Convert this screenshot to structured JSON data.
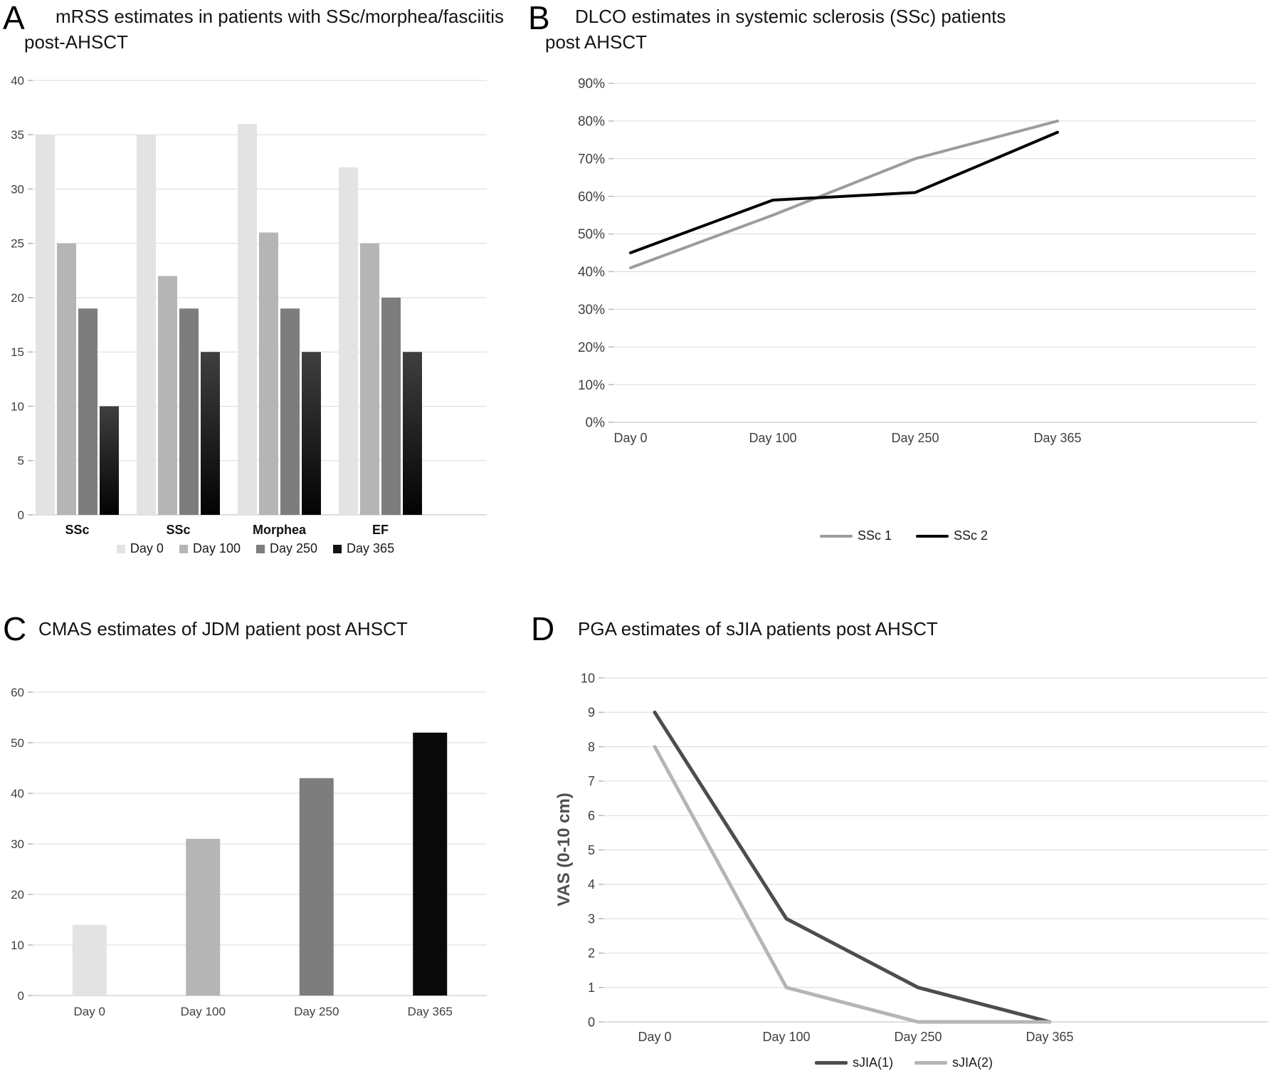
{
  "figure": {
    "background": "#ffffff"
  },
  "panels": [
    {
      "letter": "A",
      "title_lines": [
        "mRSS estimates in patients with SSc/morphea/fasciitis",
        "post-AHSCT"
      ]
    },
    {
      "letter": "B",
      "title_lines": [
        "DLCO estimates in systemic sclerosis (SSc) patients",
        "post AHSCT"
      ]
    },
    {
      "letter": "C",
      "title_lines": [
        "CMAS estimates of JDM patient post AHSCT"
      ]
    },
    {
      "letter": "D",
      "title_lines": [
        "PGA estimates of sJIA patients post AHSCT"
      ]
    }
  ],
  "chart_data": [
    {
      "panel": "A",
      "type": "bar",
      "title": "mRSS estimates in patients with SSc/morphea/fasciitis post-AHSCT",
      "categories": [
        "SSc",
        "SSc",
        "Morphea",
        "EF"
      ],
      "series": [
        {
          "name": "Day 0",
          "color": "#e3e3e3",
          "values": [
            35,
            35,
            36,
            32
          ]
        },
        {
          "name": "Day 100",
          "color": "#b5b5b5",
          "values": [
            25,
            22,
            26,
            25
          ]
        },
        {
          "name": "Day 250",
          "color": "#7d7d7d",
          "values": [
            19,
            19,
            19,
            20
          ]
        },
        {
          "name": "Day 365",
          "color": "#141414",
          "values": [
            10,
            15,
            15,
            15
          ]
        }
      ],
      "ylim": [
        0,
        40
      ],
      "ytick_step": 5,
      "grid": true,
      "legend_position": "bottom"
    },
    {
      "panel": "B",
      "type": "line",
      "title": "DLCO estimates in systemic sclerosis (SSc) patients post AHSCT",
      "x": [
        "Day 0",
        "Day 100",
        "Day 250",
        "Day 365"
      ],
      "series": [
        {
          "name": "SSc 1",
          "color": "#9c9c9c",
          "values": [
            41,
            55,
            70,
            80
          ]
        },
        {
          "name": "SSc 2",
          "color": "#000000",
          "values": [
            45,
            59,
            61,
            77
          ]
        }
      ],
      "ylim": [
        0,
        90
      ],
      "ytick_step": 10,
      "y_suffix": "%",
      "grid": true,
      "legend_position": "bottom"
    },
    {
      "panel": "C",
      "type": "bar",
      "title": "CMAS estimates of JDM patient post AHSCT",
      "categories": [
        "Day 0",
        "Day 100",
        "Day 250",
        "Day 365"
      ],
      "values": [
        14,
        31,
        43,
        52
      ],
      "bar_colors": [
        "#e3e3e3",
        "#b5b5b5",
        "#7d7d7d",
        "#0a0a0a"
      ],
      "ylim": [
        0,
        60
      ],
      "ytick_step": 10,
      "grid": true,
      "legend_position": "none"
    },
    {
      "panel": "D",
      "type": "line",
      "title": "PGA estimates of sJIA patients post AHSCT",
      "x": [
        "Day 0",
        "Day 100",
        "Day 250",
        "Day 365"
      ],
      "ylabel": "VAS (0-10 cm)",
      "series": [
        {
          "name": "sJIA(1)",
          "color": "#4d4d4d",
          "values": [
            9,
            3,
            1,
            0
          ]
        },
        {
          "name": "sJIA(2)",
          "color": "#b5b5b5",
          "values": [
            8,
            1,
            0,
            0
          ]
        }
      ],
      "ylim": [
        0,
        10
      ],
      "ytick_step": 1,
      "grid": true,
      "legend_position": "bottom"
    }
  ]
}
